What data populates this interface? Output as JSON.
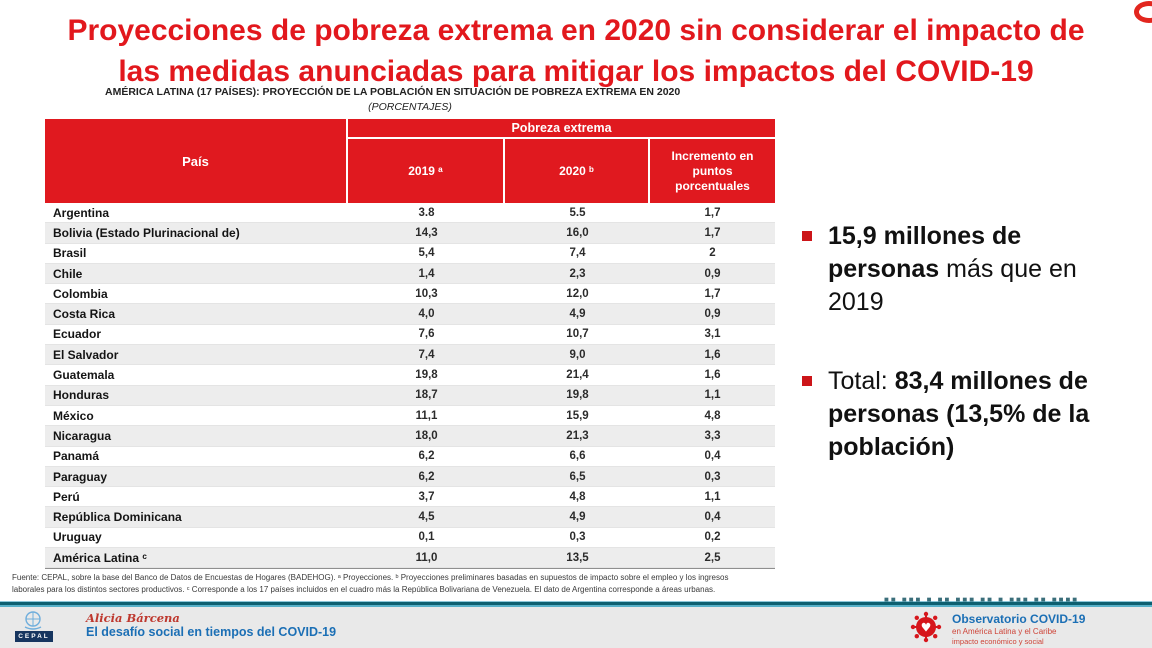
{
  "slide": {
    "title_line1": "Proyecciones de pobreza extrema en 2020 sin considerar el impacto de",
    "title_line2": "las medidas anunciadas para mitigar los impactos del COVID-19",
    "subtitle": "AMÉRICA LATINA (17 PAÍSES): PROYECCIÓN DE LA POBLACIÓN EN SITUACIÓN DE POBREZA EXTREMA EN 2020",
    "subtitle2": "(PORCENTAJES)"
  },
  "table": {
    "group_header": "Pobreza extrema",
    "columns": [
      "País",
      "2019 ᵃ",
      "2020 ᵇ",
      "Incremento en puntos porcentuales"
    ],
    "rows": [
      [
        "Argentina",
        "3.8",
        "5.5",
        "1,7"
      ],
      [
        "Bolivia (Estado Plurinacional de)",
        "14,3",
        "16,0",
        "1,7"
      ],
      [
        "Brasil",
        "5,4",
        "7,4",
        "2"
      ],
      [
        "Chile",
        "1,4",
        "2,3",
        "0,9"
      ],
      [
        "Colombia",
        "10,3",
        "12,0",
        "1,7"
      ],
      [
        "Costa Rica",
        "4,0",
        "4,9",
        "0,9"
      ],
      [
        "Ecuador",
        "7,6",
        "10,7",
        "3,1"
      ],
      [
        "El Salvador",
        "7,4",
        "9,0",
        "1,6"
      ],
      [
        "Guatemala",
        "19,8",
        "21,4",
        "1,6"
      ],
      [
        "Honduras",
        "18,7",
        "19,8",
        "1,1"
      ],
      [
        "México",
        "11,1",
        "15,9",
        "4,8"
      ],
      [
        "Nicaragua",
        "18,0",
        "21,3",
        "3,3"
      ],
      [
        "Panamá",
        "6,2",
        "6,6",
        "0,4"
      ],
      [
        "Paraguay",
        "6,2",
        "6,5",
        "0,3"
      ],
      [
        "Perú",
        "3,7",
        "4,8",
        "1,1"
      ],
      [
        "República Dominicana",
        "4,5",
        "4,9",
        "0,4"
      ],
      [
        "Uruguay",
        "0,1",
        "0,3",
        "0,2"
      ],
      [
        "América Latina ᶜ",
        "11,0",
        "13,5",
        "2,5"
      ]
    ]
  },
  "source": {
    "line1": "Fuente: CEPAL, sobre la base del Banco de Datos de Encuestas de Hogares (BADEHOG). ᵃ Proyecciones. ᵇ Proyecciones preliminares basadas en supuestos de impacto sobre el empleo y los ingresos",
    "line2": "laborales para los distintos sectores productivos. ᶜ Corresponde a los 17 países incluidos en el cuadro más la República Bolivariana de Venezuela. El dato de Argentina corresponde a áreas urbanas."
  },
  "bullets": [
    {
      "segments": [
        {
          "text": "15,9 millones de personas",
          "bold": true
        },
        {
          "text": " más que en 2019",
          "bold": false
        }
      ]
    },
    {
      "segments": [
        {
          "text": "Total: ",
          "bold": false
        },
        {
          "text": "83,4 millones de personas (13,5% de la población)",
          "bold": true
        }
      ]
    }
  ],
  "footer": {
    "cepal_label": "CEPAL",
    "author": "Alicia Bárcena",
    "program": "El desafío social en tiempos del COVID-19",
    "observatory_title": "Observatorio COVID-19",
    "observatory_line2": "en América Latina y el Caribe",
    "observatory_line3": "impacto económico y social"
  },
  "watermark": {
    "glyphs": "■■ ■■■ ■ ■■ ■■■ ■■ ■ ■■■ ■■ ■■■■"
  },
  "colors": {
    "title_red": "#E2181D",
    "table_header_red": "#E0191F",
    "row_stripe": "#EDEDED",
    "bullet_red": "#CC1519",
    "footer_blue": "#1B6FB5",
    "footer_red": "#BE382E",
    "teal_line": "#0D5F70",
    "footer_bg": "#E9E9E9",
    "cepal_navy": "#16355F",
    "virus_red": "#D6161C"
  }
}
